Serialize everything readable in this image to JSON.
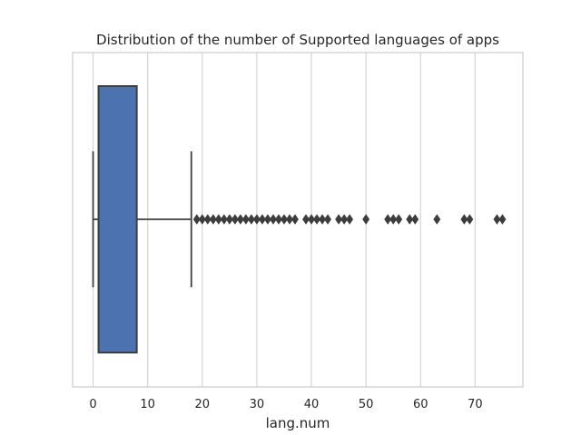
{
  "chart_data": {
    "type": "box",
    "orientation": "horizontal",
    "title": "Distribution of the number of Supported languages of apps",
    "xlabel": "lang.num",
    "ylabel": "",
    "xlim": [
      -3.75,
      78.75
    ],
    "x_ticks": [
      0,
      10,
      20,
      30,
      40,
      50,
      60,
      70
    ],
    "x_tick_labels": [
      "0",
      "10",
      "20",
      "30",
      "40",
      "50",
      "60",
      "70"
    ],
    "grid": "vertical",
    "box": {
      "whisker_low": 0,
      "q1": 1,
      "median": 1,
      "q3": 8,
      "whisker_high": 18,
      "color": "#4c72b0",
      "edge_color": "#3f3f3f"
    },
    "outliers": [
      19,
      20,
      21,
      22,
      23,
      24,
      25,
      26,
      27,
      28,
      29,
      30,
      31,
      32,
      33,
      34,
      35,
      36,
      37,
      39,
      40,
      41,
      42,
      43,
      45,
      46,
      47,
      50,
      54,
      55,
      56,
      58,
      59,
      63,
      68,
      69,
      74,
      75
    ]
  }
}
